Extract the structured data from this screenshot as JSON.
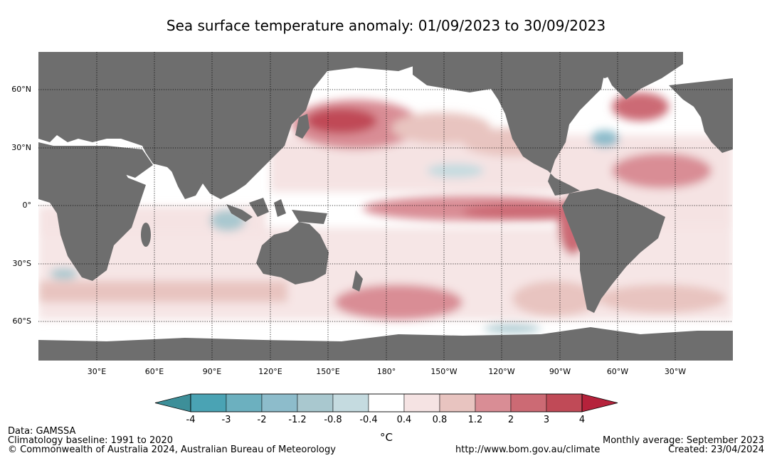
{
  "title": "Sea surface temperature anomaly: 01/09/2023 to 30/09/2023",
  "latitude_labels": [
    "60°N",
    "30°N",
    "0°",
    "30°S",
    "60°S"
  ],
  "longitude_labels": [
    "30°E",
    "60°E",
    "90°E",
    "120°E",
    "150°E",
    "180°",
    "150°W",
    "120°W",
    "90°W",
    "60°W",
    "30°W"
  ],
  "colorbar": {
    "ticks": [
      "-4",
      "-3",
      "-2",
      "-1.2",
      "-0.8",
      "-0.4",
      "0.4",
      "0.8",
      "1.2",
      "2",
      "3",
      "4"
    ],
    "colors": [
      "#3d8f99",
      "#4aa3b4",
      "#6cb0bf",
      "#8dbccb",
      "#a9c8cf",
      "#c5dbe0",
      "#ffffff",
      "#f5e3e3",
      "#e8c4c0",
      "#d98d95",
      "#cc6a74",
      "#c04a57",
      "#b5223b"
    ],
    "unit": "°C"
  },
  "colors": {
    "land": "#6e6e6e",
    "ocean_base": "#ffffff"
  },
  "footer": {
    "data_source": "Data: GAMSSA",
    "baseline": "Climatology baseline: 1991 to 2020",
    "copyright": "© Commonwealth of Australia 2024, Australian Bureau of Meteorology",
    "average": "Monthly average: September 2023",
    "url": "http://www.bom.gov.au/climate",
    "created": "Created: 23/04/2024"
  }
}
